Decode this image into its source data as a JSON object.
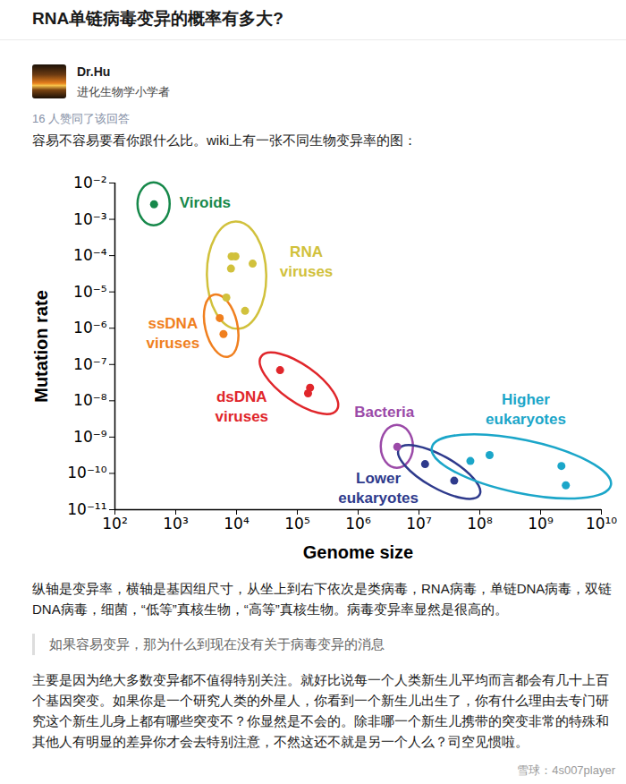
{
  "header": {
    "title": "RNA单链病毒变异的概率有多大?"
  },
  "author": {
    "name": "Dr.Hu",
    "bio": "进化生物学小学者"
  },
  "votes": "16 人赞同了该回答",
  "intro": "容易不容易要看你跟什么比。wiki上有一张不同生物变异率的图：",
  "chart_data": {
    "type": "scatter",
    "xlabel": "Genome size",
    "ylabel": "Mutation rate",
    "log": true,
    "grid": false,
    "xlim": [
      100,
      10000000000
    ],
    "ylim": [
      1e-11,
      0.01
    ],
    "xticks": [
      {
        "value": 100,
        "label": "10²"
      },
      {
        "value": 1000,
        "label": "10³"
      },
      {
        "value": 10000,
        "label": "10⁴"
      },
      {
        "value": 100000,
        "label": "10⁵"
      },
      {
        "value": 1000000,
        "label": "10⁶"
      },
      {
        "value": 10000000,
        "label": "10⁷"
      },
      {
        "value": 100000000,
        "label": "10⁸"
      },
      {
        "value": 1000000000,
        "label": "10⁹"
      },
      {
        "value": 10000000000,
        "label": "10¹⁰"
      }
    ],
    "yticks": [
      {
        "value": 0.01,
        "label": "10⁻²"
      },
      {
        "value": 0.001,
        "label": "10⁻³"
      },
      {
        "value": 0.0001,
        "label": "10⁻⁴"
      },
      {
        "value": 1e-05,
        "label": "10⁻⁵"
      },
      {
        "value": 1e-06,
        "label": "10⁻⁶"
      },
      {
        "value": 1e-07,
        "label": "10⁻⁷"
      },
      {
        "value": 1e-08,
        "label": "10⁻⁸"
      },
      {
        "value": 1e-09,
        "label": "10⁻⁹"
      },
      {
        "value": 1e-10,
        "label": "10⁻¹⁰"
      },
      {
        "value": 1e-11,
        "label": "10⁻¹¹"
      }
    ],
    "series": [
      {
        "name": "Viroids",
        "color": "#16884a",
        "x": [
          440
        ],
        "values": [
          0.0026
        ]
      },
      {
        "name": "RNA viruses",
        "color": "#d1c13c",
        "x": [
          8300,
          9600,
          18400,
          8100,
          6800,
          13800
        ],
        "values": [
          9.5e-05,
          9.5e-05,
          6e-05,
          4.4e-05,
          7e-06,
          3e-06
        ]
      },
      {
        "name": "ssDNA viruses",
        "color": "#f07f1e",
        "x": [
          5300,
          6100
        ],
        "values": [
          1.9e-06,
          6.9e-07
        ]
      },
      {
        "name": "dsDNA viruses",
        "color": "#e0262b",
        "x": [
          52000,
          162000,
          150000
        ],
        "values": [
          7e-08,
          2.3e-08,
          1.6e-08
        ]
      },
      {
        "name": "Bacteria",
        "color": "#9b4aa8",
        "x": [
          4400000
        ],
        "values": [
          5.4e-10
        ]
      },
      {
        "name": "Lower eukaryotes",
        "color": "#2e3a8c",
        "x": [
          12600000,
          38000000
        ],
        "values": [
          1.8e-10,
          6.3e-11
        ]
      },
      {
        "name": "Higher eukaryotes",
        "color": "#1ba6c9",
        "x": [
          70000000,
          145000000,
          2200000000,
          2600000000
        ],
        "values": [
          2.2e-10,
          3.2e-10,
          1.6e-10,
          4.7e-11
        ]
      }
    ]
  },
  "paragraph_after_chart": "纵轴是变异率，横轴是基因组尺寸，从坐上到右下依次是类病毒，RNA病毒，单链DNA病毒，双链DNA病毒，细菌，“低等”真核生物，“高等”真核生物。病毒变异率显然是很高的。",
  "quote": "如果容易变异，那为什么到现在没有关于病毒变异的消息",
  "paragraph_after_quote": "主要是因为绝大多数变异都不值得特别关注。就好比说每一个人类新生儿平均而言都会有几十上百个基因突变。如果你是一个研究人类的外星人，你看到一个新生儿出生了，你有什么理由去专门研究这个新生儿身上都有哪些突变不？你显然是不会的。除非哪一个新生儿携带的突变非常的特殊和其他人有明显的差异你才会去特别注意，不然这还不就是另一个人么？司空见惯啦。",
  "watermark": "雪球：4s007player"
}
